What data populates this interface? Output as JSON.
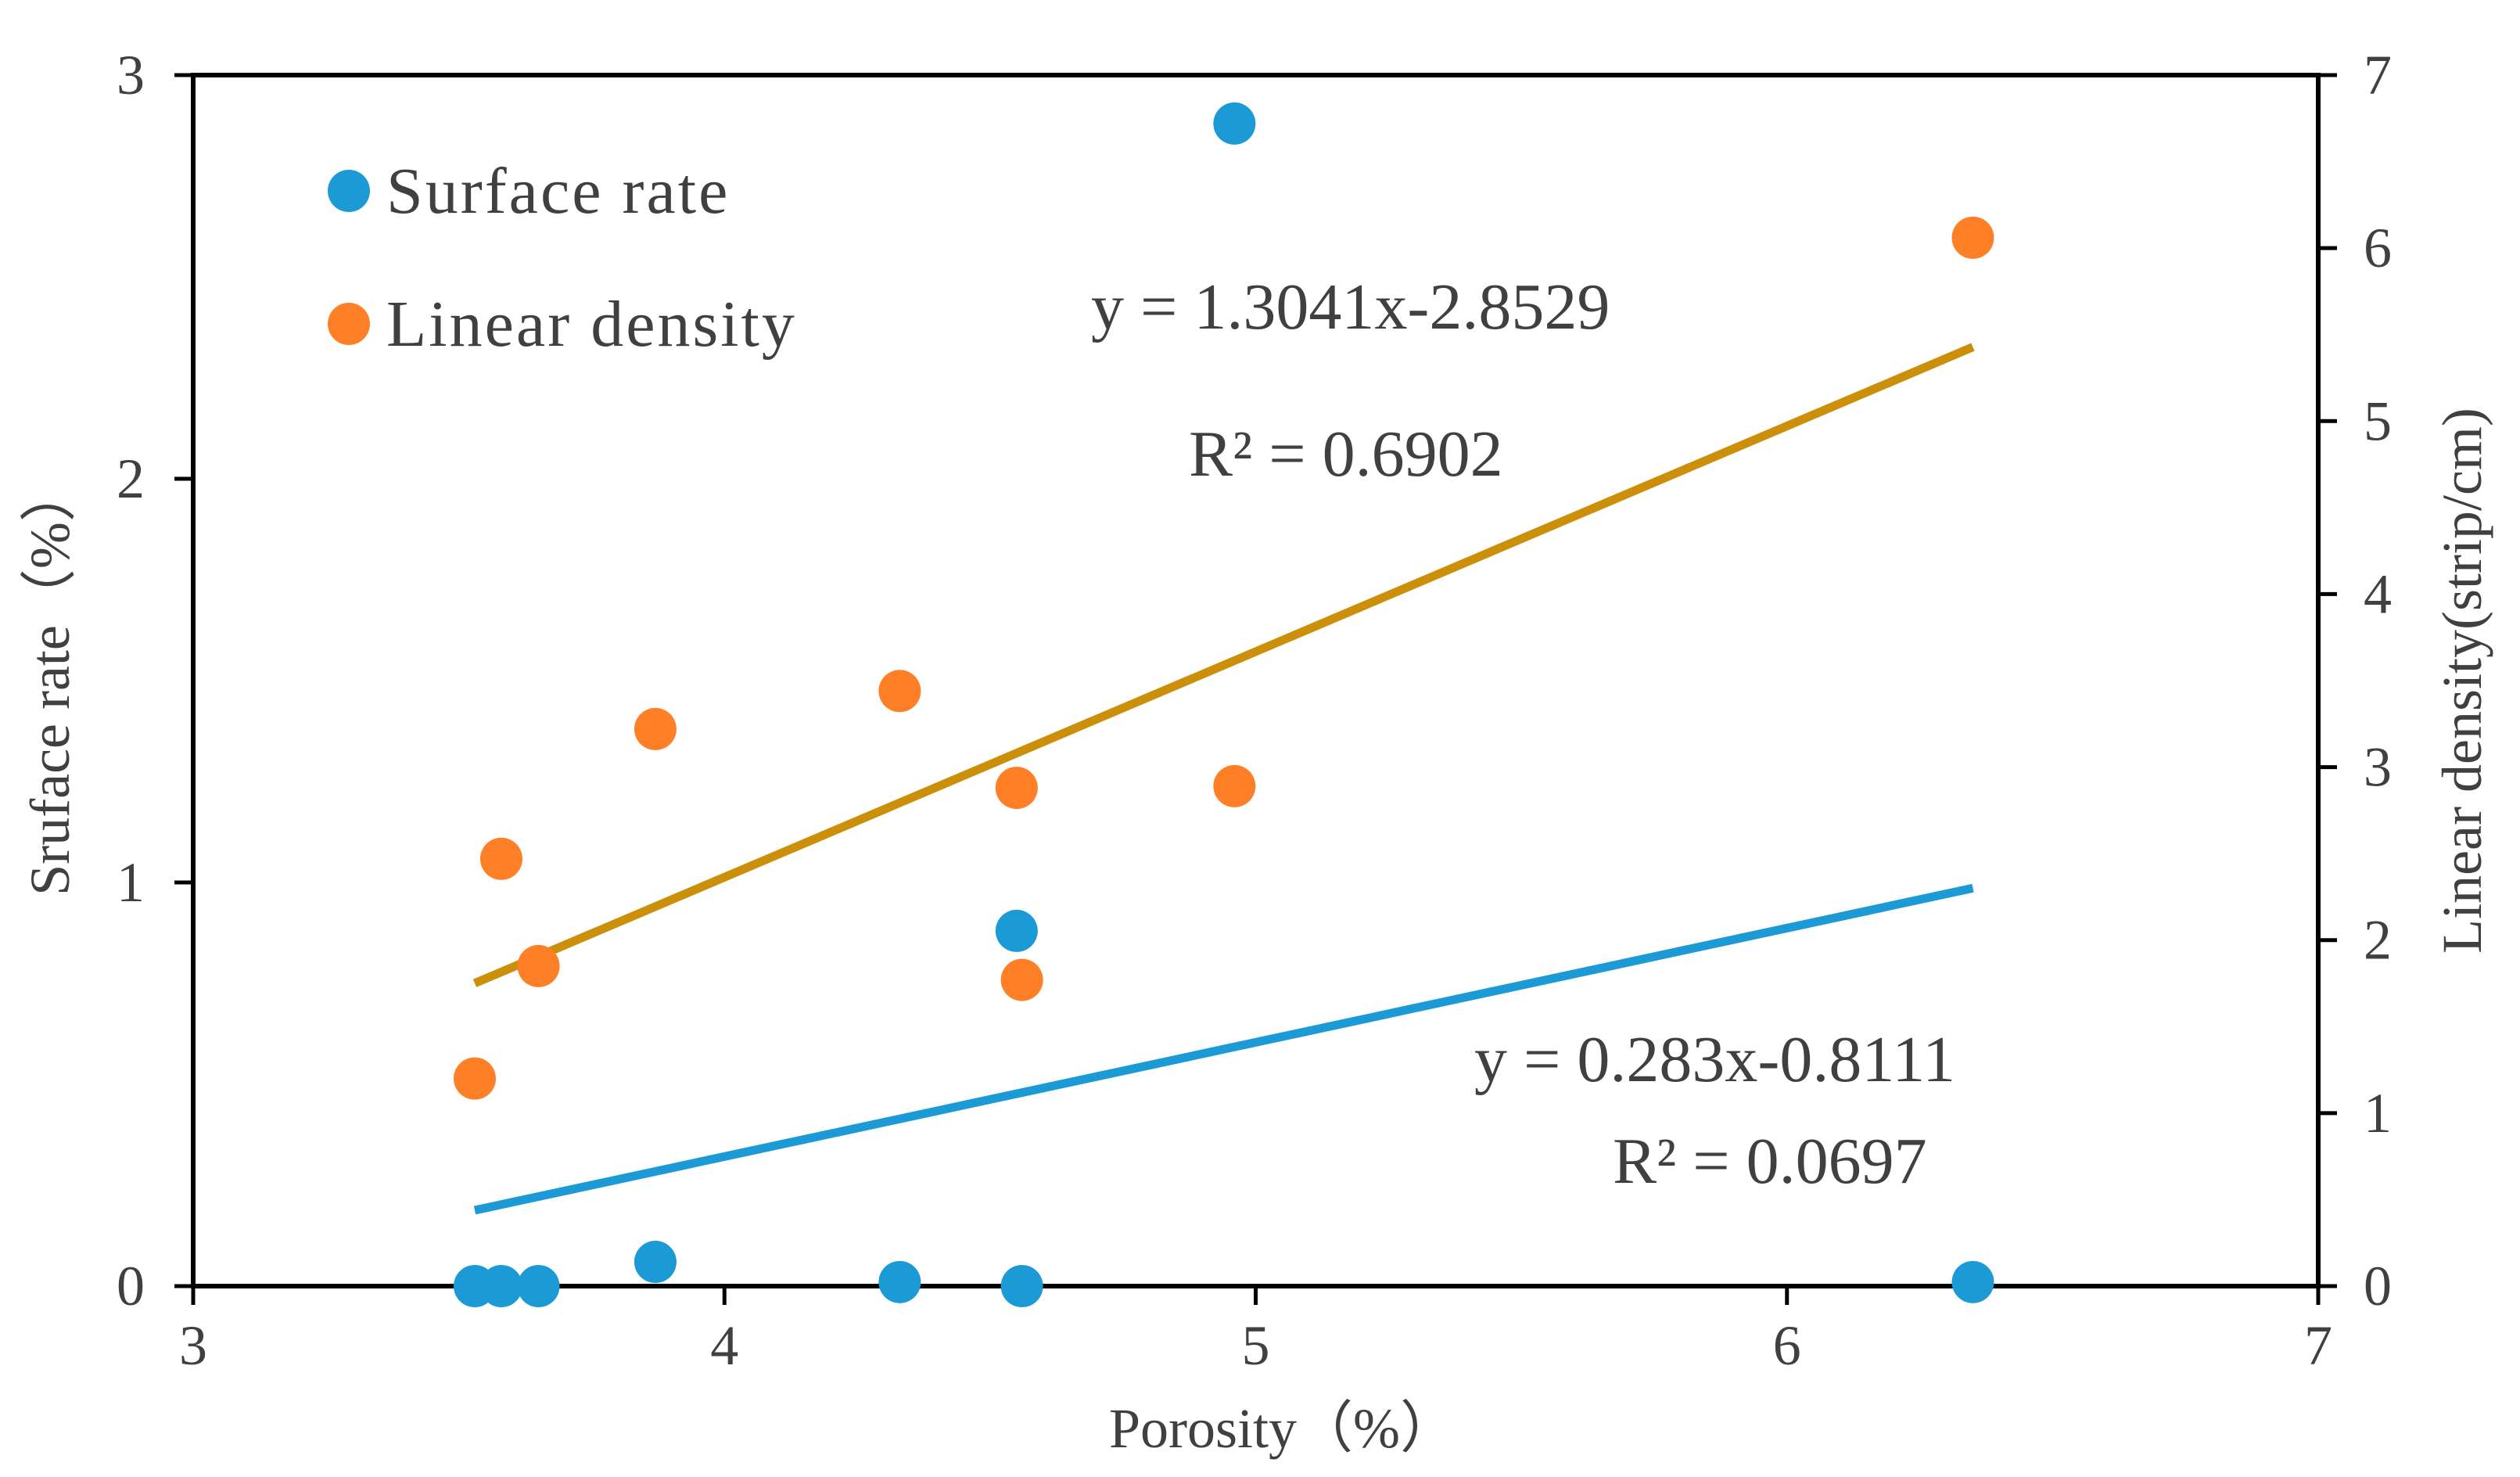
{
  "chart_data": {
    "type": "scatter",
    "title": "",
    "xlabel": "Porosity（%）",
    "ylabel_left": "Sruface rate（%）",
    "ylabel_right": "Linear density(strip/cm)",
    "xlim": [
      3,
      7
    ],
    "ylim_left": [
      0,
      3
    ],
    "ylim_right": [
      0,
      7
    ],
    "x_ticks": [
      "3",
      "4",
      "5",
      "6",
      "7"
    ],
    "y_left_ticks": [
      "0",
      "1",
      "2",
      "3"
    ],
    "y_right_ticks": [
      "0",
      "1",
      "2",
      "3",
      "4",
      "5",
      "6",
      "7"
    ],
    "grid": false,
    "legend_position": "top-left",
    "series": [
      {
        "name": "Surface rate",
        "axis": "left",
        "color": "#1B9AD6",
        "points": [
          {
            "x": 3.53,
            "y": 0.0
          },
          {
            "x": 3.58,
            "y": 0.0
          },
          {
            "x": 3.65,
            "y": 0.0
          },
          {
            "x": 3.87,
            "y": 0.06
          },
          {
            "x": 4.33,
            "y": 0.01
          },
          {
            "x": 4.55,
            "y": 0.88
          },
          {
            "x": 4.56,
            "y": 0.0
          },
          {
            "x": 4.96,
            "y": 2.88
          },
          {
            "x": 6.35,
            "y": 0.01
          }
        ],
        "trendline": {
          "slope": 0.283,
          "intercept": -0.8111,
          "x_range": [
            3.53,
            6.35
          ],
          "color": "#1B9AD6"
        }
      },
      {
        "name": "Linear density",
        "axis": "right",
        "color": "#FF7F27",
        "points": [
          {
            "x": 3.53,
            "y": 1.2
          },
          {
            "x": 3.58,
            "y": 2.47
          },
          {
            "x": 3.65,
            "y": 1.85
          },
          {
            "x": 3.87,
            "y": 3.22
          },
          {
            "x": 4.33,
            "y": 3.44
          },
          {
            "x": 4.55,
            "y": 2.88
          },
          {
            "x": 4.56,
            "y": 1.77
          },
          {
            "x": 4.96,
            "y": 2.89
          },
          {
            "x": 6.35,
            "y": 6.06
          }
        ],
        "trendline": {
          "slope": 1.3041,
          "intercept": -2.8529,
          "x_range": [
            3.53,
            6.35
          ],
          "color": "#CC8F0A"
        }
      }
    ],
    "annotations": {
      "linear_density_equation": "y = 1.3041x-2.8529",
      "linear_density_r2": "R² = 0.6902",
      "surface_rate_equation": "y = 0.283x-0.8111",
      "surface_rate_r2": "R² = 0.0697"
    }
  }
}
